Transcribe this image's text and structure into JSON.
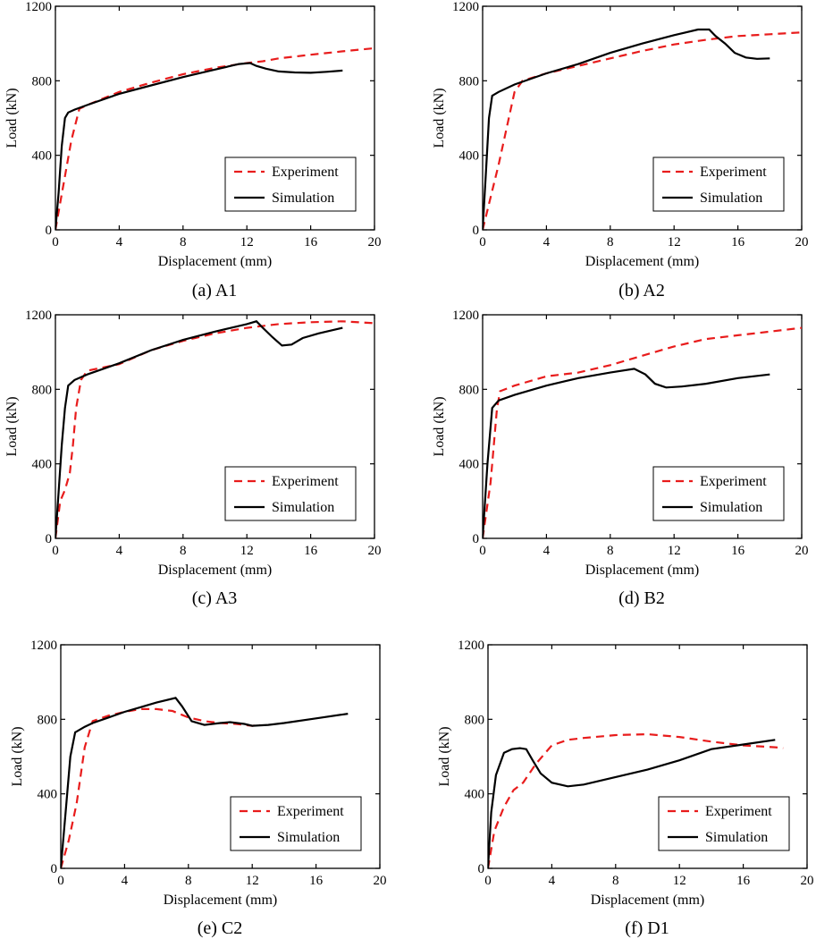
{
  "chart_data": [
    {
      "type": "line",
      "caption": "(a) A1",
      "xlabel": "Displacement (mm)",
      "ylabel": "Load (kN)",
      "xlim": [
        0,
        20
      ],
      "ylim": [
        0,
        1200
      ],
      "xticks": [
        "0",
        "4",
        "8",
        "12",
        "16",
        "20"
      ],
      "yticks": [
        "0",
        "400",
        "800",
        "1200"
      ],
      "legend_position": "bottom-right",
      "series": [
        {
          "name": "Experiment",
          "style": "dashed",
          "color": "#e81c1c",
          "points": [
            [
              0,
              0
            ],
            [
              0.5,
              240
            ],
            [
              1.0,
              480
            ],
            [
              1.5,
              650
            ],
            [
              2,
              670
            ],
            [
              4,
              740
            ],
            [
              6,
              790
            ],
            [
              8,
              835
            ],
            [
              10,
              870
            ],
            [
              12,
              895
            ],
            [
              13,
              905
            ],
            [
              14,
              920
            ],
            [
              16,
              940
            ],
            [
              18,
              958
            ],
            [
              20,
              975
            ]
          ]
        },
        {
          "name": "Simulation",
          "style": "solid",
          "color": "#000000",
          "points": [
            [
              0,
              0
            ],
            [
              0.2,
              200
            ],
            [
              0.4,
              450
            ],
            [
              0.6,
              600
            ],
            [
              0.8,
              630
            ],
            [
              1.2,
              645
            ],
            [
              2,
              670
            ],
            [
              4,
              730
            ],
            [
              6,
              775
            ],
            [
              8,
              820
            ],
            [
              10,
              860
            ],
            [
              11.5,
              890
            ],
            [
              12.2,
              895
            ],
            [
              12.6,
              880
            ],
            [
              13.2,
              865
            ],
            [
              14,
              850
            ],
            [
              15,
              845
            ],
            [
              16,
              843
            ],
            [
              17,
              848
            ],
            [
              18,
              855
            ]
          ]
        }
      ]
    },
    {
      "type": "line",
      "caption": "(b) A2",
      "xlabel": "Displacement (mm)",
      "ylabel": "Load (kN)",
      "xlim": [
        0,
        20
      ],
      "ylim": [
        0,
        1200
      ],
      "xticks": [
        "0",
        "4",
        "8",
        "12",
        "16",
        "20"
      ],
      "yticks": [
        "0",
        "400",
        "800",
        "1200"
      ],
      "legend_position": "bottom-right",
      "series": [
        {
          "name": "Experiment",
          "style": "dashed",
          "color": "#e81c1c",
          "points": [
            [
              0,
              0
            ],
            [
              1,
              350
            ],
            [
              2,
              740
            ],
            [
              2.5,
              800
            ],
            [
              4,
              840
            ],
            [
              6,
              880
            ],
            [
              8,
              920
            ],
            [
              10,
              960
            ],
            [
              12,
              995
            ],
            [
              14,
              1020
            ],
            [
              16,
              1040
            ],
            [
              18,
              1050
            ],
            [
              20,
              1060
            ]
          ]
        },
        {
          "name": "Simulation",
          "style": "solid",
          "color": "#000000",
          "points": [
            [
              0,
              0
            ],
            [
              0.2,
              300
            ],
            [
              0.4,
              600
            ],
            [
              0.6,
              720
            ],
            [
              1,
              740
            ],
            [
              2,
              780
            ],
            [
              4,
              840
            ],
            [
              6,
              890
            ],
            [
              8,
              950
            ],
            [
              10,
              1000
            ],
            [
              12,
              1045
            ],
            [
              13.5,
              1075
            ],
            [
              14.2,
              1075
            ],
            [
              14.6,
              1040
            ],
            [
              15.2,
              1000
            ],
            [
              15.8,
              950
            ],
            [
              16.5,
              925
            ],
            [
              17.2,
              918
            ],
            [
              18,
              920
            ]
          ]
        }
      ]
    },
    {
      "type": "line",
      "caption": "(c) A3",
      "xlabel": "Displacement (mm)",
      "ylabel": "Load (kN)",
      "xlim": [
        0,
        20
      ],
      "ylim": [
        0,
        1200
      ],
      "xticks": [
        "0",
        "4",
        "8",
        "12",
        "16",
        "20"
      ],
      "yticks": [
        "0",
        "400",
        "800",
        "1200"
      ],
      "legend_position": "bottom-right",
      "series": [
        {
          "name": "Experiment",
          "style": "dashed",
          "color": "#e81c1c",
          "points": [
            [
              0,
              0
            ],
            [
              0.3,
              200
            ],
            [
              0.6,
              260
            ],
            [
              0.9,
              350
            ],
            [
              1.1,
              500
            ],
            [
              1.3,
              700
            ],
            [
              1.6,
              850
            ],
            [
              2,
              900
            ],
            [
              4,
              935
            ],
            [
              6,
              1010
            ],
            [
              8,
              1060
            ],
            [
              10,
              1100
            ],
            [
              12,
              1130
            ],
            [
              14,
              1150
            ],
            [
              16,
              1160
            ],
            [
              18,
              1165
            ],
            [
              20,
              1155
            ]
          ]
        },
        {
          "name": "Simulation",
          "style": "solid",
          "color": "#000000",
          "points": [
            [
              0,
              0
            ],
            [
              0.2,
              250
            ],
            [
              0.4,
              500
            ],
            [
              0.6,
              700
            ],
            [
              0.8,
              820
            ],
            [
              1.2,
              850
            ],
            [
              2,
              880
            ],
            [
              4,
              940
            ],
            [
              6,
              1010
            ],
            [
              8,
              1065
            ],
            [
              10,
              1110
            ],
            [
              12,
              1150
            ],
            [
              12.6,
              1165
            ],
            [
              13,
              1130
            ],
            [
              13.6,
              1080
            ],
            [
              14.2,
              1035
            ],
            [
              14.8,
              1040
            ],
            [
              15.5,
              1075
            ],
            [
              16.5,
              1100
            ],
            [
              18,
              1130
            ]
          ]
        }
      ]
    },
    {
      "type": "line",
      "caption": "(d) B2",
      "xlabel": "Displacement (mm)",
      "ylabel": "Load (kN)",
      "xlim": [
        0,
        20
      ],
      "ylim": [
        0,
        1200
      ],
      "xticks": [
        "0",
        "4",
        "8",
        "12",
        "16",
        "20"
      ],
      "yticks": [
        "0",
        "400",
        "800",
        "1200"
      ],
      "legend_position": "bottom-right",
      "series": [
        {
          "name": "Experiment",
          "style": "dashed",
          "color": "#e81c1c",
          "points": [
            [
              0,
              0
            ],
            [
              0.5,
              300
            ],
            [
              0.9,
              700
            ],
            [
              1.1,
              790
            ],
            [
              2,
              820
            ],
            [
              4,
              870
            ],
            [
              6,
              890
            ],
            [
              8,
              930
            ],
            [
              10,
              980
            ],
            [
              12,
              1030
            ],
            [
              14,
              1070
            ],
            [
              16,
              1090
            ],
            [
              18,
              1110
            ],
            [
              20,
              1130
            ]
          ]
        },
        {
          "name": "Simulation",
          "style": "solid",
          "color": "#000000",
          "points": [
            [
              0,
              0
            ],
            [
              0.3,
              400
            ],
            [
              0.6,
              700
            ],
            [
              1,
              740
            ],
            [
              2,
              770
            ],
            [
              4,
              820
            ],
            [
              6,
              860
            ],
            [
              8,
              890
            ],
            [
              9.5,
              910
            ],
            [
              10.2,
              880
            ],
            [
              10.8,
              830
            ],
            [
              11.5,
              810
            ],
            [
              12.5,
              815
            ],
            [
              14,
              830
            ],
            [
              16,
              860
            ],
            [
              18,
              880
            ]
          ]
        }
      ]
    },
    {
      "type": "line",
      "caption": "(e) C2",
      "xlabel": "Displacement (mm)",
      "ylabel": "Load (kN)",
      "xlim": [
        0,
        20
      ],
      "ylim": [
        0,
        1200
      ],
      "xticks": [
        "0",
        "4",
        "8",
        "12",
        "16",
        "20"
      ],
      "yticks": [
        "0",
        "400",
        "800",
        "1200"
      ],
      "legend_position": "bottom-right",
      "series": [
        {
          "name": "Experiment",
          "style": "dashed",
          "color": "#e81c1c",
          "points": [
            [
              0,
              0
            ],
            [
              0.5,
              150
            ],
            [
              1,
              350
            ],
            [
              1.5,
              650
            ],
            [
              2,
              790
            ],
            [
              3,
              820
            ],
            [
              4,
              840
            ],
            [
              5,
              855
            ],
            [
              6,
              855
            ],
            [
              7,
              845
            ],
            [
              8,
              810
            ],
            [
              9,
              790
            ],
            [
              10,
              780
            ],
            [
              11,
              775
            ],
            [
              12,
              765
            ],
            [
              12.5,
              770
            ]
          ]
        },
        {
          "name": "Simulation",
          "style": "solid",
          "color": "#000000",
          "points": [
            [
              0,
              0
            ],
            [
              0.3,
              300
            ],
            [
              0.6,
              600
            ],
            [
              0.9,
              730
            ],
            [
              1.5,
              760
            ],
            [
              2,
              780
            ],
            [
              3,
              810
            ],
            [
              4,
              840
            ],
            [
              5,
              865
            ],
            [
              6,
              890
            ],
            [
              7.2,
              915
            ],
            [
              7.6,
              870
            ],
            [
              8.2,
              790
            ],
            [
              9,
              770
            ],
            [
              10,
              780
            ],
            [
              10.6,
              785
            ],
            [
              11.5,
              775
            ],
            [
              12,
              765
            ],
            [
              13,
              770
            ],
            [
              14,
              780
            ],
            [
              16,
              805
            ],
            [
              18,
              830
            ]
          ]
        }
      ]
    },
    {
      "type": "line",
      "caption": "(f) D1",
      "xlabel": "Displacement (mm)",
      "ylabel": "Load (kN)",
      "xlim": [
        0,
        20
      ],
      "ylim": [
        0,
        1200
      ],
      "xticks": [
        "0",
        "4",
        "8",
        "12",
        "16",
        "20"
      ],
      "yticks": [
        "0",
        "400",
        "800",
        "1200"
      ],
      "legend_position": "bottom-right",
      "series": [
        {
          "name": "Experiment",
          "style": "dashed",
          "color": "#e81c1c",
          "points": [
            [
              0,
              0
            ],
            [
              0.4,
              200
            ],
            [
              1,
              330
            ],
            [
              1.6,
              420
            ],
            [
              2.2,
              460
            ],
            [
              3,
              560
            ],
            [
              4,
              660
            ],
            [
              5,
              690
            ],
            [
              6,
              700
            ],
            [
              8,
              715
            ],
            [
              10,
              720
            ],
            [
              12,
              705
            ],
            [
              14,
              680
            ],
            [
              16,
              660
            ],
            [
              18,
              650
            ],
            [
              18.5,
              645
            ]
          ]
        },
        {
          "name": "Simulation",
          "style": "solid",
          "color": "#000000",
          "points": [
            [
              0,
              0
            ],
            [
              0.2,
              300
            ],
            [
              0.5,
              500
            ],
            [
              1,
              620
            ],
            [
              1.5,
              640
            ],
            [
              2,
              645
            ],
            [
              2.4,
              640
            ],
            [
              2.8,
              580
            ],
            [
              3.3,
              510
            ],
            [
              4,
              460
            ],
            [
              5,
              440
            ],
            [
              6,
              450
            ],
            [
              8,
              490
            ],
            [
              10,
              530
            ],
            [
              12,
              580
            ],
            [
              14,
              640
            ],
            [
              16,
              665
            ],
            [
              18,
              690
            ]
          ]
        }
      ]
    }
  ]
}
